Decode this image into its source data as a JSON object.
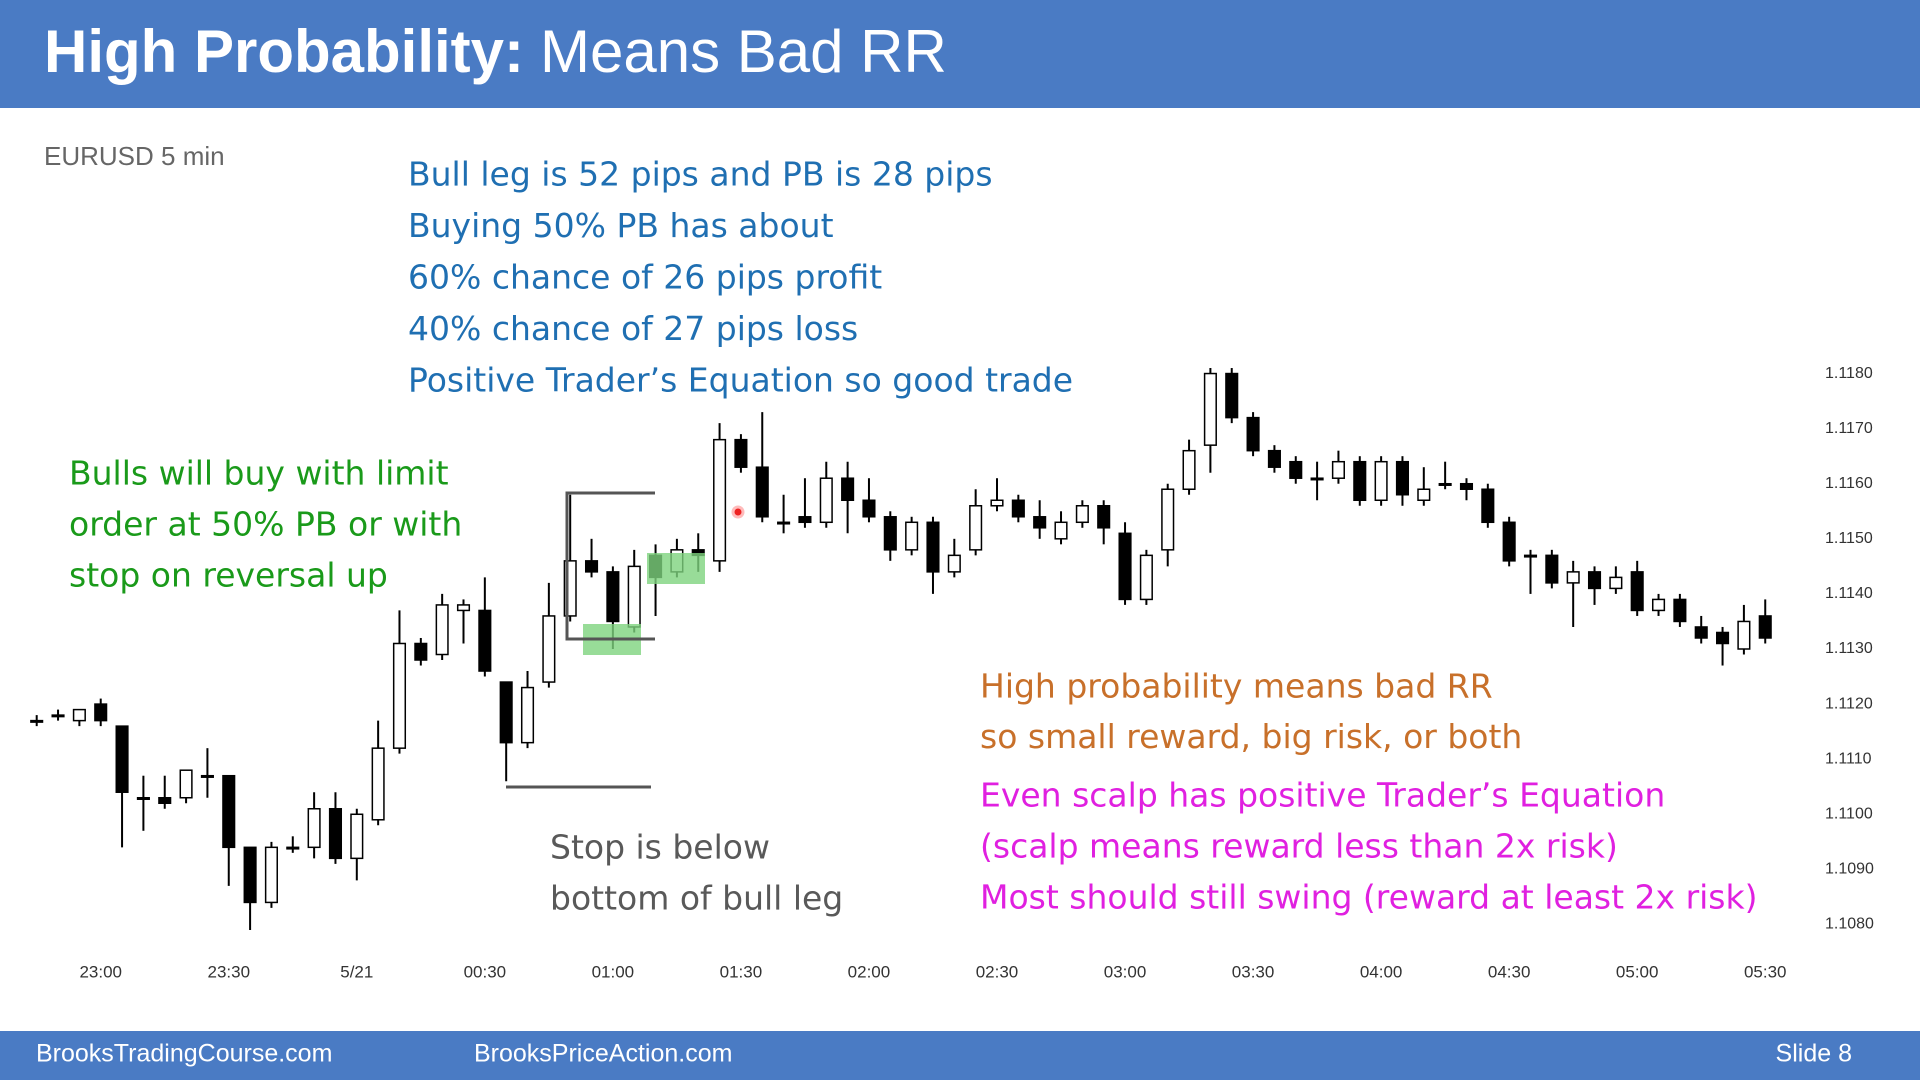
{
  "header": {
    "title_bold": "High Probability:",
    "title_rest": "Means Bad RR"
  },
  "chart_data": {
    "type": "candlestick",
    "subtitle": "EURUSD 5 min",
    "categories": [
      null,
      null,
      null,
      "23:00",
      null,
      null,
      null,
      null,
      null,
      "23:30",
      null,
      null,
      null,
      null,
      null,
      "5/21",
      null,
      null,
      null,
      null,
      null,
      "00:30",
      null,
      null,
      null,
      null,
      null,
      "01:00",
      null,
      null,
      null,
      null,
      null,
      "01:30",
      null,
      null,
      null,
      null,
      null,
      "02:00",
      null,
      null,
      null,
      null,
      null,
      "02:30",
      null,
      null,
      null,
      null,
      null,
      "03:00",
      null,
      null,
      null,
      null,
      null,
      "03:30",
      null,
      null,
      null,
      null,
      null,
      "04:00",
      null,
      null,
      null,
      null,
      null,
      "04:30",
      null,
      null,
      null,
      null,
      null,
      "05:00",
      null,
      null,
      null,
      null,
      null,
      "05:30"
    ],
    "open": [
      1.1117,
      1.1118,
      1.1117,
      1.112,
      1.1116,
      1.1103,
      1.1103,
      1.1103,
      1.1107,
      1.1107,
      1.1094,
      1.1084,
      1.1094,
      1.1094,
      1.1101,
      1.1092,
      1.1099,
      1.1112,
      1.1131,
      1.1129,
      1.1137,
      1.1137,
      1.1124,
      1.1113,
      1.1124,
      1.1136,
      1.1146,
      1.1144,
      1.1134,
      1.1147,
      1.1144,
      1.1148,
      1.1146,
      1.1168,
      1.1163,
      1.1153,
      1.1154,
      1.1153,
      1.1161,
      1.1157,
      1.1154,
      1.1148,
      1.1153,
      1.1144,
      1.1148,
      1.1156,
      1.1157,
      1.1154,
      1.115,
      1.1153,
      1.1156,
      1.1151,
      1.1139,
      1.1148,
      1.1159,
      1.1167,
      1.118,
      1.1172,
      1.1166,
      1.1164,
      1.1161,
      1.1161,
      1.1164,
      1.1157,
      1.1164,
      1.1157,
      1.116,
      1.116,
      1.1159,
      1.1153,
      1.1147,
      1.1147,
      1.1142,
      1.1144,
      1.1141,
      1.1144,
      1.1137,
      1.1139,
      1.1134,
      1.1133,
      1.113,
      1.1136
    ],
    "high": [
      1.1118,
      1.1119,
      1.1119,
      1.1121,
      1.1116,
      1.1107,
      1.1107,
      1.1108,
      1.1112,
      1.1107,
      1.1094,
      1.1095,
      1.1096,
      1.1104,
      1.1104,
      1.1101,
      1.1117,
      1.1137,
      1.1132,
      1.114,
      1.1139,
      1.1143,
      1.1124,
      1.1126,
      1.1142,
      1.1158,
      1.115,
      1.1145,
      1.1148,
      1.1149,
      1.115,
      1.1151,
      1.1171,
      1.1169,
      1.1173,
      1.1158,
      1.1161,
      1.1164,
      1.1164,
      1.1161,
      1.1155,
      1.1154,
      1.1154,
      1.115,
      1.1159,
      1.1161,
      1.1158,
      1.1157,
      1.1155,
      1.1157,
      1.1157,
      1.1153,
      1.1148,
      1.116,
      1.1168,
      1.1181,
      1.1181,
      1.1173,
      1.1167,
      1.1165,
      1.1164,
      1.1166,
      1.1165,
      1.1165,
      1.1165,
      1.1163,
      1.1164,
      1.1161,
      1.116,
      1.1154,
      1.1148,
      1.1148,
      1.1146,
      1.1145,
      1.1145,
      1.1146,
      1.114,
      1.114,
      1.1136,
      1.1134,
      1.1138,
      1.1139
    ],
    "low": [
      1.1116,
      1.1117,
      1.1116,
      1.1116,
      1.1094,
      1.1097,
      1.1101,
      1.1102,
      1.1103,
      1.1087,
      1.1079,
      1.1083,
      1.1093,
      1.1092,
      1.1091,
      1.1088,
      1.1098,
      1.1111,
      1.1127,
      1.1128,
      1.1131,
      1.1125,
      1.1106,
      1.1112,
      1.1123,
      1.1135,
      1.1143,
      1.113,
      1.1133,
      1.1136,
      1.1143,
      1.1144,
      1.1144,
      1.1162,
      1.1153,
      1.1151,
      1.1152,
      1.1152,
      1.1151,
      1.1153,
      1.1146,
      1.1147,
      1.114,
      1.1143,
      1.1147,
      1.1155,
      1.1153,
      1.115,
      1.1149,
      1.1152,
      1.1149,
      1.1138,
      1.1138,
      1.1145,
      1.1158,
      1.1162,
      1.1171,
      1.1165,
      1.1162,
      1.116,
      1.1157,
      1.116,
      1.1156,
      1.1156,
      1.1156,
      1.1156,
      1.1159,
      1.1157,
      1.1152,
      1.1145,
      1.114,
      1.1141,
      1.1134,
      1.1138,
      1.114,
      1.1136,
      1.1136,
      1.1134,
      1.1131,
      1.1127,
      1.1129,
      1.1131
    ],
    "close": [
      1.1117,
      1.1118,
      1.1119,
      1.1117,
      1.1104,
      1.1103,
      1.1102,
      1.1108,
      1.1107,
      1.1094,
      1.1084,
      1.1094,
      1.1094,
      1.1101,
      1.1092,
      1.11,
      1.1112,
      1.1131,
      1.1128,
      1.1138,
      1.1138,
      1.1126,
      1.1113,
      1.1123,
      1.1136,
      1.1146,
      1.1144,
      1.1135,
      1.1145,
      1.1143,
      1.1148,
      1.1147,
      1.1168,
      1.1163,
      1.1154,
      1.1153,
      1.1153,
      1.1161,
      1.1157,
      1.1154,
      1.1148,
      1.1153,
      1.1144,
      1.1147,
      1.1156,
      1.1157,
      1.1154,
      1.1152,
      1.1153,
      1.1156,
      1.1152,
      1.1139,
      1.1147,
      1.1159,
      1.1166,
      1.118,
      1.1172,
      1.1166,
      1.1163,
      1.1161,
      1.1161,
      1.1164,
      1.1157,
      1.1164,
      1.1158,
      1.1159,
      1.116,
      1.1159,
      1.1153,
      1.1146,
      1.1147,
      1.1142,
      1.1144,
      1.1141,
      1.1143,
      1.1137,
      1.1139,
      1.1135,
      1.1132,
      1.1131,
      1.1135,
      1.1132
    ],
    "up_color": "#ffffff",
    "down_color": "#000000",
    "ylim": [
      1.1075,
      1.1185
    ],
    "yticks": [
      {
        "value": 1.108,
        "label": "1.1080"
      },
      {
        "value": 1.109,
        "label": "1.1090"
      },
      {
        "value": 1.11,
        "label": "1.1100"
      },
      {
        "value": 1.111,
        "label": "1.1110"
      },
      {
        "value": 1.112,
        "label": "1.1120"
      },
      {
        "value": 1.113,
        "label": "1.1130"
      },
      {
        "value": 1.114,
        "label": "1.1140"
      },
      {
        "value": 1.115,
        "label": "1.1150"
      },
      {
        "value": 1.116,
        "label": "1.1160"
      },
      {
        "value": 1.117,
        "label": "1.1170"
      },
      {
        "value": 1.118,
        "label": "1.1180"
      }
    ],
    "annotations": [
      {
        "color": "#1f6fb2",
        "lines": [
          "Bull leg is 52 pips and PB is 28 pips",
          "Buying 50% PB has about",
          "60% chance of 26 pips profit",
          "40% chance of 27 pips loss",
          "Positive Trader’s Equation so good trade"
        ]
      },
      {
        "color": "#1a9a1a",
        "lines": [
          "Bulls will buy with limit",
          "order at 50% PB or with",
          "stop on reversal up"
        ]
      },
      {
        "color": "#c8702a",
        "lines": [
          "High probability means bad RR",
          "so small reward, big risk, or both"
        ]
      },
      {
        "color": "#e020e0",
        "lines": [
          "Even scalp has positive Trader’s Equation",
          "(scalp means reward less than 2x risk)",
          "Most should still swing (reward at least 2x risk)"
        ]
      },
      {
        "color": "#595959",
        "lines": [
          "Stop is below",
          "bottom of bull leg"
        ]
      }
    ]
  },
  "footer": {
    "left": "BrooksTradingCourse.com",
    "middle": "BrooksPriceAction.com",
    "right": "Slide 8"
  }
}
